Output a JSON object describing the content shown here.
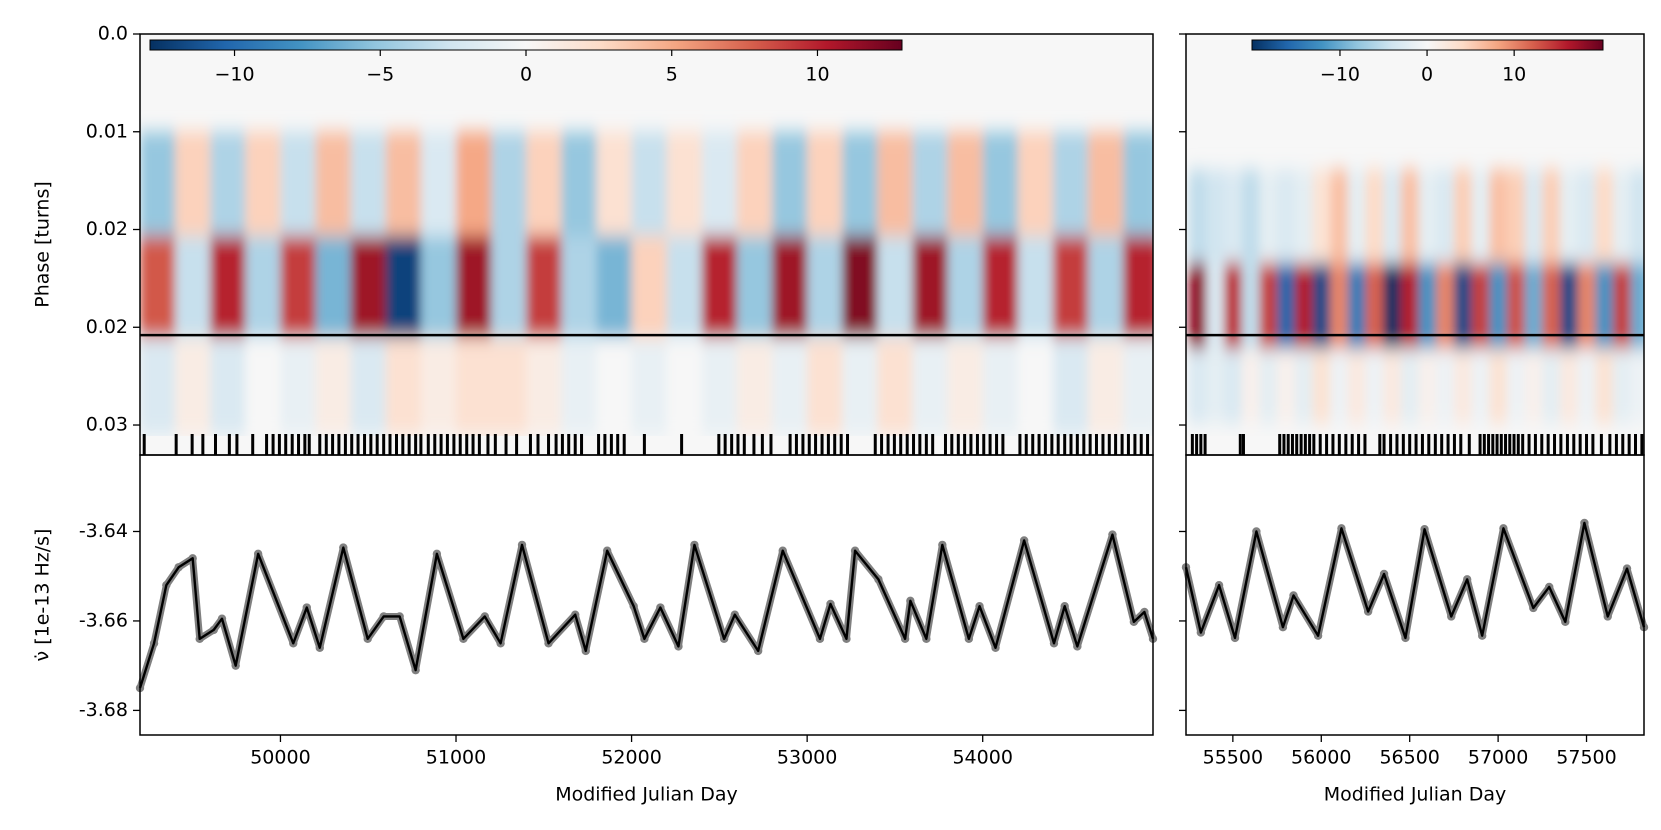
{
  "chart_data": [
    {
      "type": "heatmap",
      "x": [
        49300,
        49500,
        49700,
        49900,
        50100,
        50300,
        50500,
        50700,
        50900,
        51100,
        51300,
        51500,
        51700,
        51900,
        52100,
        52300,
        52500,
        52700,
        52900,
        53100,
        53300,
        53500,
        53700,
        53900,
        54100,
        54300,
        54500,
        54700,
        54900
      ],
      "y": [
        0.0115,
        0.0195,
        0.027
      ],
      "z": [
        [
          -5,
          3,
          -4,
          3,
          -3,
          4,
          -3,
          4,
          -2,
          5,
          -4,
          3,
          -5,
          2,
          -3,
          2,
          -2,
          3,
          -5,
          3,
          -5,
          4,
          -4,
          4,
          -5,
          3,
          -4,
          4,
          -5
        ],
        [
          8,
          -3,
          10,
          -4,
          9,
          -6,
          11,
          -12,
          -5,
          11,
          -4,
          9,
          -4,
          -6,
          3,
          -3,
          10,
          -5,
          11,
          -4,
          12,
          -3,
          11,
          -4,
          10,
          -3,
          9,
          -4,
          10
        ],
        [
          -2,
          1,
          -2,
          0,
          -1,
          1,
          -2,
          2,
          1,
          2,
          2,
          1,
          -1,
          0,
          -1,
          0,
          -1,
          1,
          -1,
          2,
          -1,
          2,
          -1,
          1,
          -1,
          0,
          -2,
          1,
          -1
        ]
      ],
      "xlim": [
        49200,
        54970
      ],
      "ylim": [
        0,
        0.0323
      ],
      "yticks": [
        {
          "value": 0,
          "label": "0.0"
        },
        {
          "value": 0.0075,
          "label": "0.01"
        },
        {
          "value": 0.015,
          "label": "0.02"
        },
        {
          "value": 0.0225,
          "label": "0.02"
        },
        {
          "value": 0.03,
          "label": "0.03"
        }
      ],
      "ylabel": "Phase [turns]",
      "hline": 0.0231,
      "hline_color": "#000000",
      "cmap": "RdBu_r",
      "clim": [
        -12.9,
        12.9
      ],
      "colorbar_ticks": [
        {
          "value": -10,
          "label": "−10"
        },
        {
          "value": -5,
          "label": "−5"
        },
        0,
        5,
        10
      ],
      "toa": [
        49224,
        49406,
        49497,
        49558,
        49630,
        49709,
        49752,
        49842,
        49921,
        49958,
        49994,
        50030,
        50067,
        50103,
        50139,
        50164,
        50224,
        50261,
        50297,
        50333,
        50370,
        50406,
        50442,
        50479,
        50515,
        50551,
        50588,
        50624,
        50661,
        50697,
        50733,
        50770,
        50800,
        50842,
        50879,
        50915,
        50951,
        50988,
        51024,
        51061,
        51097,
        51133,
        51182,
        51224,
        51285,
        51345,
        51424,
        51467,
        51527,
        51570,
        51606,
        51642,
        51679,
        51715,
        51812,
        51848,
        51885,
        51921,
        51958,
        52073,
        52285,
        52497,
        52533,
        52570,
        52606,
        52642,
        52697,
        52745,
        52794,
        52903,
        52939,
        52976,
        53012,
        53048,
        53085,
        53121,
        53157,
        53194,
        53230,
        53388,
        53424,
        53461,
        53497,
        53533,
        53570,
        53606,
        53642,
        53679,
        53715,
        53788,
        53824,
        53861,
        53897,
        53933,
        53970,
        54006,
        54042,
        54079,
        54115,
        54212,
        54248,
        54285,
        54321,
        54357,
        54394,
        54430,
        54467,
        54503,
        54539,
        54576,
        54612,
        54648,
        54685,
        54721,
        54757,
        54794,
        54830,
        54867,
        54903,
        54939
      ]
    },
    {
      "type": "line",
      "x": [
        49200,
        49280,
        49350,
        49420,
        49500,
        49540,
        49620,
        49667,
        49745,
        49873,
        50073,
        50150,
        50224,
        50358,
        50497,
        50588,
        50679,
        50770,
        50891,
        51042,
        51164,
        51254,
        51376,
        51527,
        51679,
        51739,
        51861,
        52012,
        52073,
        52164,
        52267,
        52358,
        52527,
        52588,
        52721,
        52861,
        53073,
        53133,
        53224,
        53273,
        53406,
        53558,
        53588,
        53679,
        53770,
        53921,
        53982,
        54073,
        54236,
        54406,
        54467,
        54539,
        54739,
        54861,
        54921,
        54970
      ],
      "values": [
        -3.675,
        -3.665,
        -3.652,
        -3.648,
        -3.646,
        -3.664,
        -3.662,
        -3.6595,
        -3.67,
        -3.645,
        -3.665,
        -3.657,
        -3.666,
        -3.6436,
        -3.664,
        -3.659,
        -3.659,
        -3.671,
        -3.645,
        -3.664,
        -3.659,
        -3.665,
        -3.643,
        -3.665,
        -3.6586,
        -3.6667,
        -3.6443,
        -3.6567,
        -3.664,
        -3.657,
        -3.6657,
        -3.643,
        -3.664,
        -3.6586,
        -3.6667,
        -3.6443,
        -3.664,
        -3.6562,
        -3.664,
        -3.6443,
        -3.6507,
        -3.664,
        -3.6555,
        -3.664,
        -3.643,
        -3.664,
        -3.6567,
        -3.666,
        -3.642,
        -3.665,
        -3.6567,
        -3.6657,
        -3.6407,
        -3.6602,
        -3.658,
        -3.664
      ],
      "xlim": [
        49200,
        54970
      ],
      "ylim": [
        -3.6855,
        -3.6229
      ],
      "xticks": [
        50000,
        51000,
        52000,
        53000,
        54000
      ],
      "yticks": [
        -3.64,
        -3.66,
        -3.68
      ],
      "xlabel": "Modified Julian Day",
      "ylabel": "ν̇ [1e-13 Hz/s]",
      "color": "#000000",
      "marker_color": "#808080"
    },
    {
      "type": "heatmap",
      "x": [
        55300,
        55400,
        55500,
        55600,
        55700,
        55800,
        55900,
        56000,
        56100,
        56200,
        56300,
        56400,
        56500,
        56600,
        56700,
        56800,
        56900,
        57000,
        57100,
        57200,
        57300,
        57400,
        57500,
        57600,
        57700,
        57800
      ],
      "y": [
        0.014,
        0.0212,
        0.027
      ],
      "z": [
        [
          -5,
          -4,
          -3,
          -5,
          -2,
          -3,
          -2,
          3,
          6,
          -2,
          4,
          -3,
          6,
          -2,
          -3,
          5,
          -2,
          6,
          5,
          -3,
          5,
          -2,
          -3,
          4,
          -2,
          -4
        ],
        [
          18,
          -3,
          15,
          -5,
          14,
          -16,
          16,
          -18,
          10,
          -14,
          12,
          -20,
          16,
          -12,
          10,
          -18,
          14,
          -12,
          13,
          -10,
          12,
          -18,
          10,
          -12,
          14,
          -10
        ],
        [
          -3,
          -2,
          -3,
          1,
          -2,
          1,
          -2,
          3,
          -1,
          2,
          -1,
          2,
          -2,
          1,
          -1,
          2,
          -1,
          3,
          -1,
          1,
          -2,
          2,
          -1,
          3,
          -2,
          -1
        ]
      ],
      "xlim": [
        55235,
        57825
      ],
      "ylim": [
        0,
        0.0323
      ],
      "hline": 0.0231,
      "hline_color": "#000000",
      "cmap": "RdBu_r",
      "clim": [
        -20.1,
        20.2
      ],
      "colorbar_ticks": [
        {
          "value": -10,
          "label": "−10"
        },
        0,
        10
      ],
      "toa": [
        55271,
        55295,
        55319,
        55343,
        55542,
        55560,
        55765,
        55789,
        55813,
        55837,
        55861,
        55886,
        55910,
        55934,
        55958,
        55994,
        56030,
        56066,
        56102,
        56139,
        56175,
        56211,
        56247,
        56331,
        56355,
        56392,
        56428,
        56464,
        56500,
        56536,
        56572,
        56608,
        56645,
        56681,
        56717,
        56753,
        56789,
        56837,
        56898,
        56922,
        56946,
        56970,
        56994,
        57018,
        57042,
        57066,
        57090,
        57114,
        57139,
        57175,
        57211,
        57247,
        57283,
        57319,
        57355,
        57392,
        57428,
        57464,
        57500,
        57536,
        57584,
        57632,
        57669,
        57705,
        57741,
        57777,
        57813
      ]
    },
    {
      "type": "line",
      "x": [
        55235,
        55319,
        55422,
        55512,
        55633,
        55783,
        55843,
        55982,
        56114,
        56265,
        56355,
        56476,
        56584,
        56735,
        56825,
        56910,
        57030,
        57199,
        57289,
        57380,
        57488,
        57620,
        57729,
        57825
      ],
      "values": [
        -3.648,
        -3.6626,
        -3.652,
        -3.6638,
        -3.64,
        -3.6614,
        -3.6543,
        -3.6633,
        -3.6393,
        -3.6579,
        -3.6495,
        -3.6638,
        -3.6395,
        -3.659,
        -3.6507,
        -3.6633,
        -3.6393,
        -3.6571,
        -3.6524,
        -3.6602,
        -3.6381,
        -3.659,
        -3.6483,
        -3.6614
      ],
      "xlim": [
        55235,
        57825
      ],
      "ylim": [
        -3.6855,
        -3.6229
      ],
      "xticks": [
        55500,
        56000,
        56500,
        57000,
        57500
      ],
      "xlabel": "Modified Julian Day",
      "color": "#000000",
      "marker_color": "#808080"
    }
  ]
}
